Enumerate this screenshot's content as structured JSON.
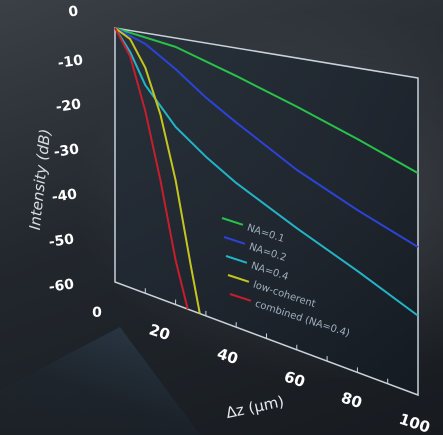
{
  "chart_data": {
    "type": "line",
    "xlabel": "Δz (μm)",
    "ylabel": "Intensity (dB)",
    "x_ticks": [
      "20",
      "40",
      "60",
      "80",
      "100"
    ],
    "y_ticks": [
      "0",
      "-10",
      "-20",
      "-30",
      "-40",
      "-50",
      "-60"
    ],
    "xlim": [
      0,
      100
    ],
    "ylim": [
      -60,
      0
    ],
    "grid": false,
    "legend_position": "bottom-right",
    "series": [
      {
        "name": "NA=0.1",
        "color": "#27c24a",
        "x": [
          0,
          20,
          40,
          60,
          80,
          100
        ],
        "y": [
          0,
          -2,
          -6,
          -10,
          -14,
          -18
        ]
      },
      {
        "name": "NA=0.2",
        "color": "#2c43d8",
        "x": [
          0,
          10,
          20,
          30,
          40,
          60,
          80,
          100
        ],
        "y": [
          0,
          -2.5,
          -7,
          -12,
          -16,
          -23,
          -28,
          -32
        ]
      },
      {
        "name": "NA=0.4",
        "color": "#22b4c6",
        "x": [
          0,
          5,
          10,
          20,
          30,
          40,
          60,
          80,
          100
        ],
        "y": [
          0,
          -5,
          -12,
          -20,
          -25,
          -29,
          -35,
          -40,
          -45
        ]
      },
      {
        "name": "low-coherent",
        "color": "#c5c51e",
        "x": [
          0,
          5,
          10,
          15,
          20,
          25,
          28
        ],
        "y": [
          0,
          -2,
          -8,
          -18,
          -32,
          -50,
          -61
        ]
      },
      {
        "name": "combined (NA=0.4)",
        "color": "#c81e2c",
        "x": [
          0,
          5,
          10,
          15,
          20,
          24
        ],
        "y": [
          0,
          -6,
          -18,
          -33,
          -50,
          -61
        ]
      }
    ]
  }
}
